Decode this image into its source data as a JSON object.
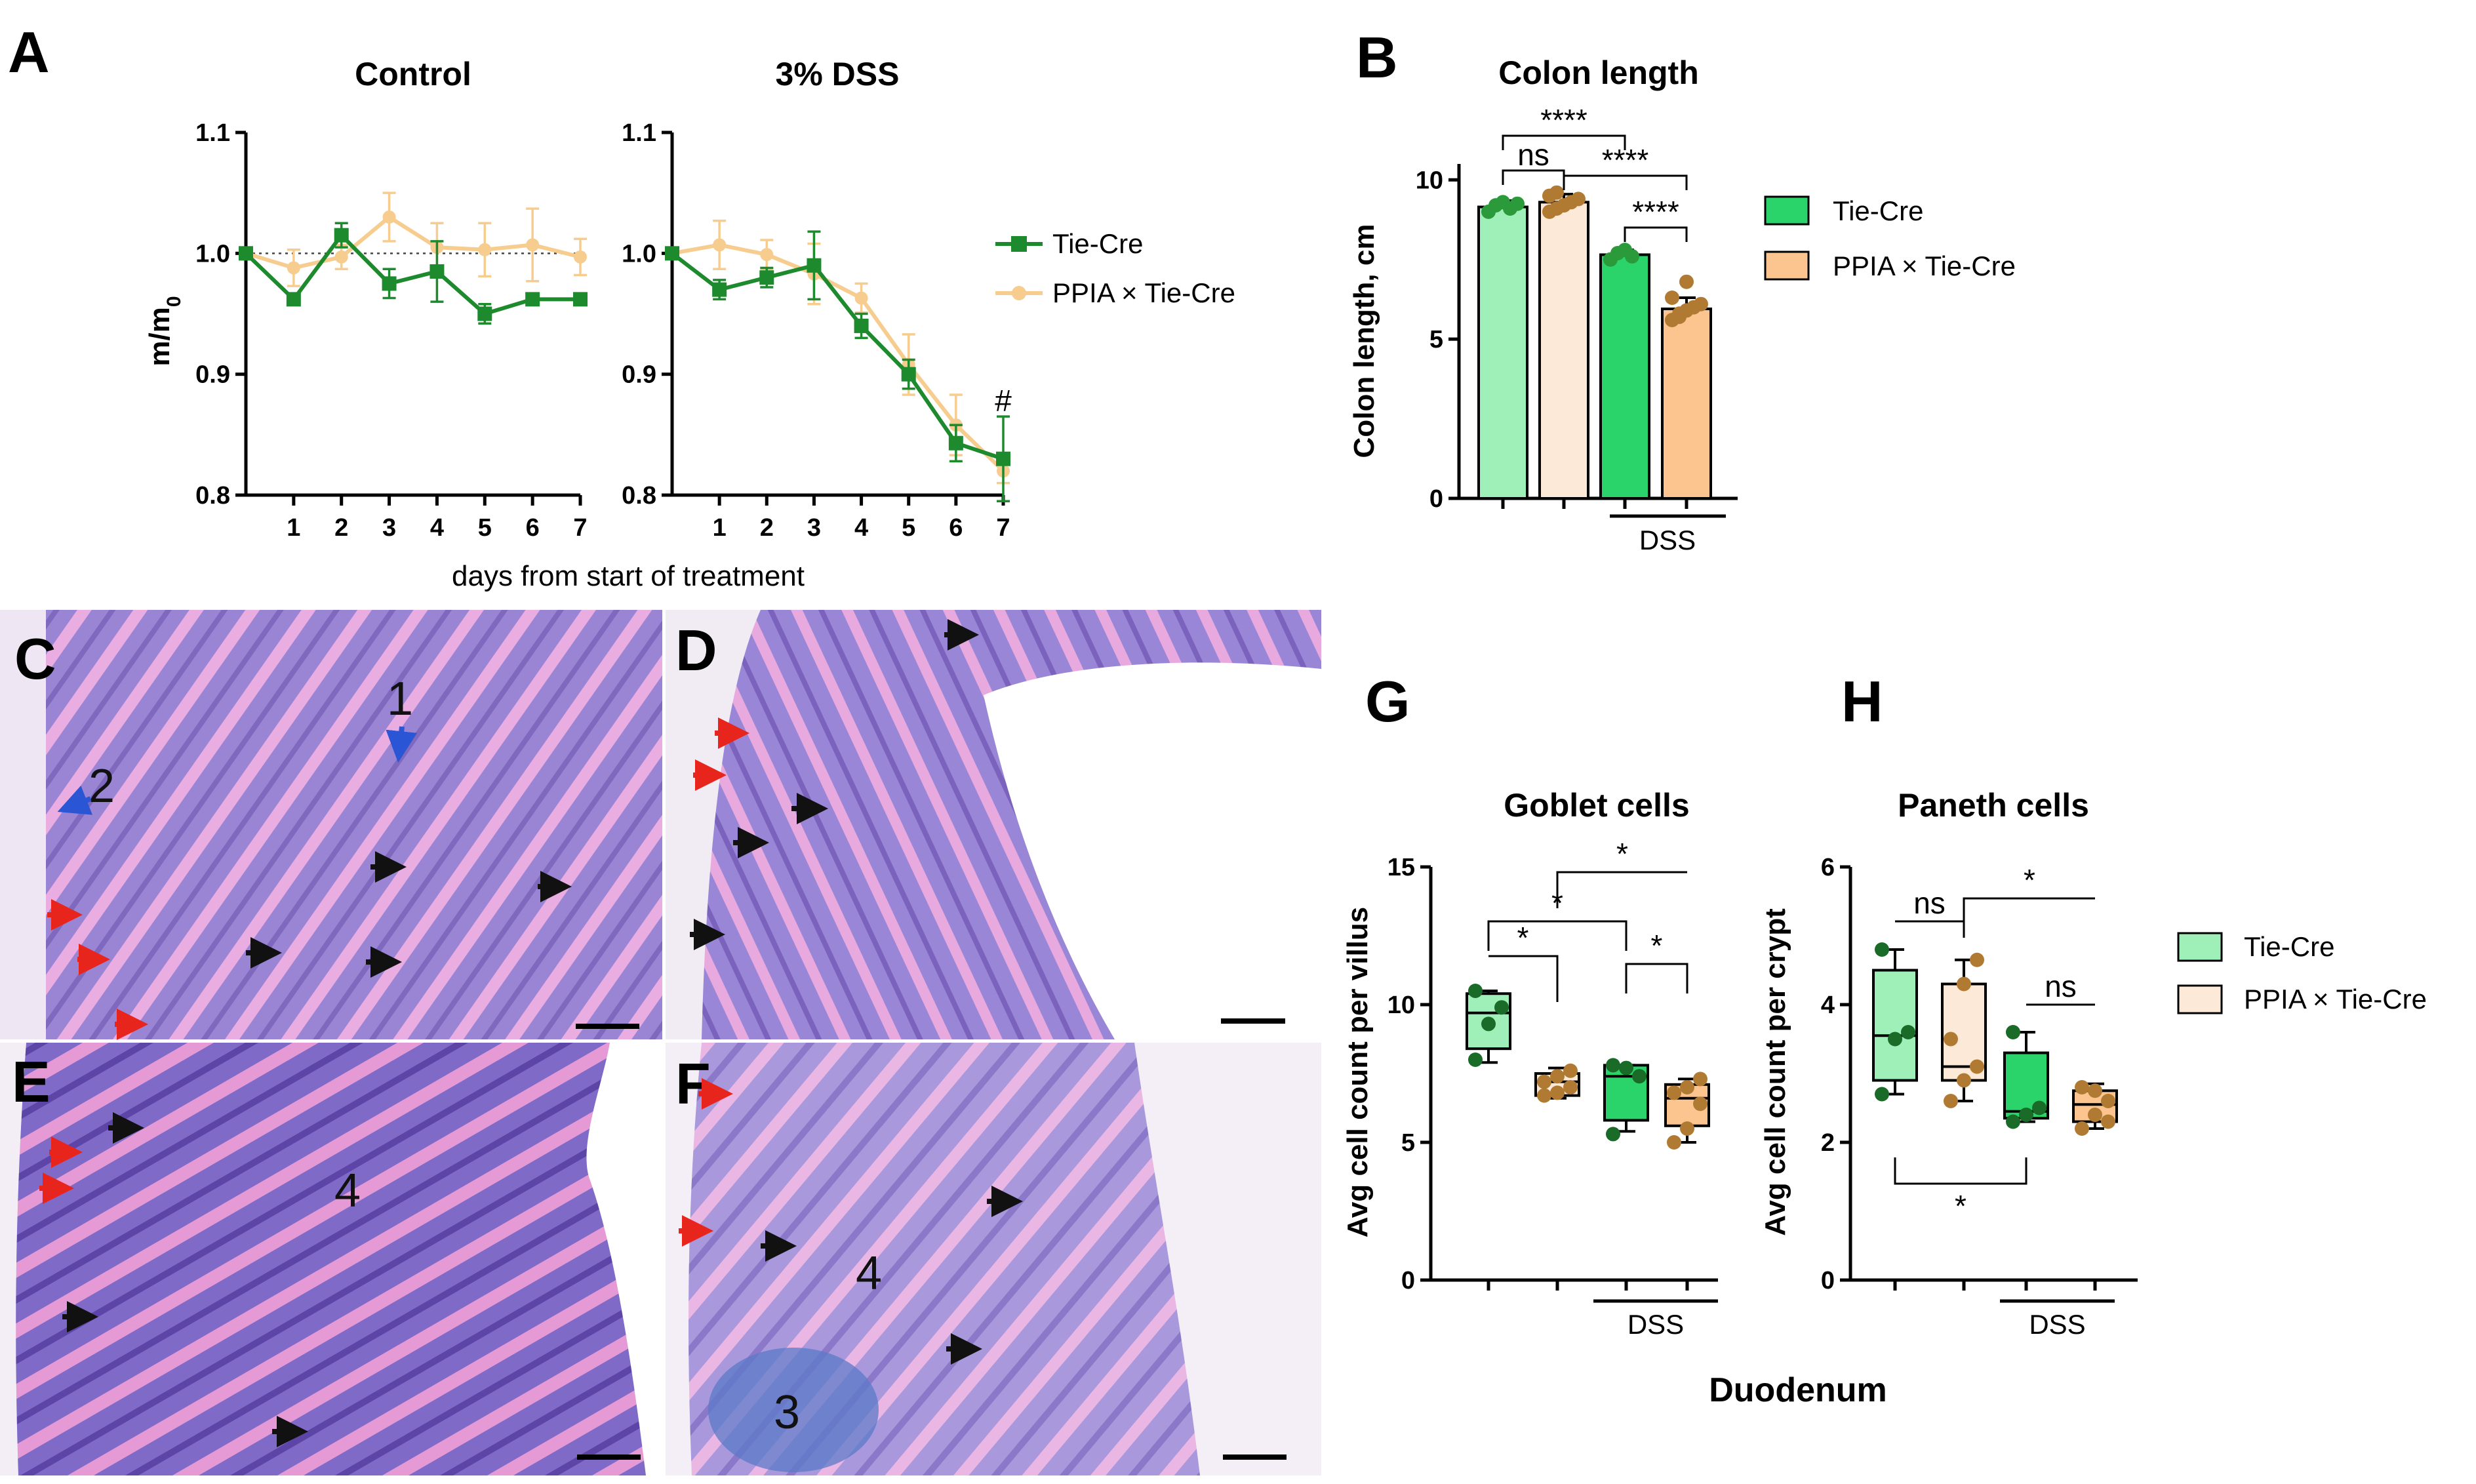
{
  "colors": {
    "tie_line": "#1e8a2e",
    "ppia_line": "#f6cc8f",
    "tie_ctrl_fill": "#9ff0b8",
    "ppia_ctrl_fill": "#fde9d8",
    "tie_dss_fill": "#2bd46a",
    "ppia_dss_fill": "#fcc48e",
    "tie_dot": "#2a9a3a",
    "tie_dot_dark": "#1a6a28",
    "ppia_dot": "#b07a33",
    "tissue_purple": "#8a6cc8",
    "tissue_pink": "#e59ad6",
    "arrow_red": "#e8251c",
    "arrow_black": "#111111",
    "arrow_blue": "#2a55d4"
  },
  "panel_labels": {
    "A": "A",
    "B": "B",
    "C": "C",
    "D": "D",
    "E": "E",
    "F": "F",
    "G": "G",
    "H": "H"
  },
  "micrograph_labels": {
    "one": "1",
    "two": "2",
    "three": "3",
    "four": "4"
  },
  "chart_data": [
    {
      "panel": "A",
      "type": "line",
      "title": "Control",
      "xlabel": "days from start of treatment",
      "ylabel": "m/m",
      "ylabel_sub": "0",
      "ylim": [
        0.8,
        1.1
      ],
      "yticks": [
        "0.8",
        "0.9",
        "1.0",
        "1.1"
      ],
      "x": [
        0,
        1,
        2,
        3,
        4,
        5,
        6,
        7
      ],
      "xticks": [
        "1",
        "2",
        "3",
        "4",
        "5",
        "6",
        "7"
      ],
      "reference_line": 1.0,
      "series": [
        {
          "name": "Tie-Cre",
          "values": [
            1.0,
            0.962,
            1.015,
            0.975,
            0.985,
            0.95,
            0.962,
            0.962
          ],
          "err": [
            0,
            0.004,
            0.01,
            0.012,
            0.025,
            0.008,
            0.003,
            0.003
          ]
        },
        {
          "name": "PPIA × Tie-Cre",
          "values": [
            1.0,
            0.988,
            0.997,
            1.03,
            1.005,
            1.003,
            1.007,
            0.997
          ],
          "err": [
            0,
            0.015,
            0.01,
            0.02,
            0.02,
            0.022,
            0.03,
            0.015
          ]
        }
      ]
    },
    {
      "panel": "A",
      "type": "line",
      "title": "3% DSS",
      "ylim": [
        0.8,
        1.1
      ],
      "yticks": [
        "0.8",
        "0.9",
        "1.0",
        "1.1"
      ],
      "x": [
        0,
        1,
        2,
        3,
        4,
        5,
        6,
        7
      ],
      "xticks": [
        "1",
        "2",
        "3",
        "4",
        "5",
        "6",
        "7"
      ],
      "annotation": "#",
      "series": [
        {
          "name": "Tie-Cre",
          "values": [
            1.0,
            0.97,
            0.98,
            0.99,
            0.94,
            0.9,
            0.843,
            0.83
          ],
          "err": [
            0,
            0.008,
            0.008,
            0.028,
            0.01,
            0.012,
            0.015,
            0.035
          ]
        },
        {
          "name": "PPIA × Tie-Cre",
          "values": [
            1.0,
            1.007,
            0.999,
            0.983,
            0.963,
            0.908,
            0.858,
            0.82
          ],
          "err": [
            0,
            0.02,
            0.012,
            0.025,
            0.012,
            0.025,
            0.025,
            0.01
          ]
        }
      ],
      "legend": [
        "Tie-Cre",
        "PPIA × Tie-Cre"
      ]
    },
    {
      "panel": "B",
      "type": "bar",
      "title": "Colon length",
      "ylabel": "Colon length, cm",
      "ylim": [
        0,
        10.5
      ],
      "yticks": [
        "0",
        "5",
        "10"
      ],
      "group_label": "DSS",
      "bars": [
        {
          "group": "Control",
          "series": "Tie-Cre",
          "value": 9.15,
          "err": 0.2,
          "points": [
            9.0,
            9.2,
            9.3,
            9.1,
            9.25
          ]
        },
        {
          "group": "Control",
          "series": "PPIA × Tie-Cre",
          "value": 9.3,
          "err": 0.25,
          "points": [
            9.0,
            9.1,
            9.2,
            9.3,
            9.4,
            9.5,
            9.6,
            9.2
          ]
        },
        {
          "group": "DSS",
          "series": "Tie-Cre",
          "value": 7.65,
          "err": 0.15,
          "points": [
            7.5,
            7.7,
            7.8,
            7.6
          ]
        },
        {
          "group": "DSS",
          "series": "PPIA × Tie-Cre",
          "value": 5.95,
          "err": 0.35,
          "points": [
            5.6,
            5.8,
            5.9,
            6.0,
            6.1,
            6.3,
            5.7,
            6.8
          ]
        }
      ],
      "significance": [
        "****",
        "ns",
        "****",
        "****"
      ],
      "legend": [
        "Tie-Cre",
        "PPIA × Tie-Cre"
      ]
    },
    {
      "panel": "G",
      "type": "box",
      "title": "Goblet cells",
      "ylabel": "Avg cell count per villus",
      "ylim": [
        0,
        15
      ],
      "yticks": [
        "0",
        "5",
        "10",
        "15"
      ],
      "group_label": "DSS",
      "boxes": [
        {
          "series": "Tie-Cre",
          "min": 7.9,
          "q1": 8.4,
          "median": 9.7,
          "q3": 10.4,
          "max": 10.5,
          "points": [
            8.0,
            9.3,
            9.9,
            10.5
          ]
        },
        {
          "series": "PPIA × Tie-Cre",
          "min": 6.6,
          "q1": 6.7,
          "median": 7.2,
          "q3": 7.5,
          "max": 7.7,
          "points": [
            6.7,
            6.8,
            7.0,
            7.2,
            7.4,
            7.6
          ]
        },
        {
          "series": "Tie-Cre",
          "min": 5.4,
          "q1": 5.8,
          "median": 7.4,
          "q3": 7.8,
          "max": 7.8,
          "points": [
            5.3,
            7.7,
            7.4,
            7.8
          ]
        },
        {
          "series": "PPIA × Tie-Cre",
          "min": 5.0,
          "q1": 5.6,
          "median": 6.6,
          "q3": 7.1,
          "max": 7.3,
          "points": [
            5.0,
            5.5,
            6.4,
            6.8,
            7.0,
            7.3
          ]
        }
      ],
      "significance": [
        "*",
        "*",
        "*",
        "*"
      ]
    },
    {
      "panel": "H",
      "type": "box",
      "title": "Paneth cells",
      "ylabel": "Avg cell count per crypt",
      "ylim": [
        0,
        6
      ],
      "yticks": [
        "0",
        "2",
        "4",
        "6"
      ],
      "group_label": "DSS",
      "boxes": [
        {
          "series": "Tie-Cre",
          "min": 2.7,
          "q1": 2.9,
          "median": 3.55,
          "q3": 4.5,
          "max": 4.8,
          "points": [
            2.7,
            3.5,
            3.6,
            4.8
          ]
        },
        {
          "series": "PPIA × Tie-Cre",
          "min": 2.6,
          "q1": 2.9,
          "median": 3.1,
          "q3": 4.3,
          "max": 4.65,
          "points": [
            2.6,
            2.9,
            3.1,
            3.5,
            4.3,
            4.65
          ]
        },
        {
          "series": "Tie-Cre",
          "min": 2.3,
          "q1": 2.35,
          "median": 2.45,
          "q3": 3.3,
          "max": 3.6,
          "points": [
            2.3,
            2.4,
            2.5,
            3.6
          ]
        },
        {
          "series": "PPIA × Tie-Cre",
          "min": 2.2,
          "q1": 2.3,
          "median": 2.55,
          "q3": 2.75,
          "max": 2.85,
          "points": [
            2.2,
            2.4,
            2.6,
            2.8,
            2.75,
            2.3
          ]
        }
      ],
      "significance": [
        "ns",
        "*",
        "ns",
        "*"
      ],
      "legend": [
        "Tie-Cre",
        "PPIA × Tie-Cre"
      ],
      "xlabel": "Duodenum"
    }
  ]
}
